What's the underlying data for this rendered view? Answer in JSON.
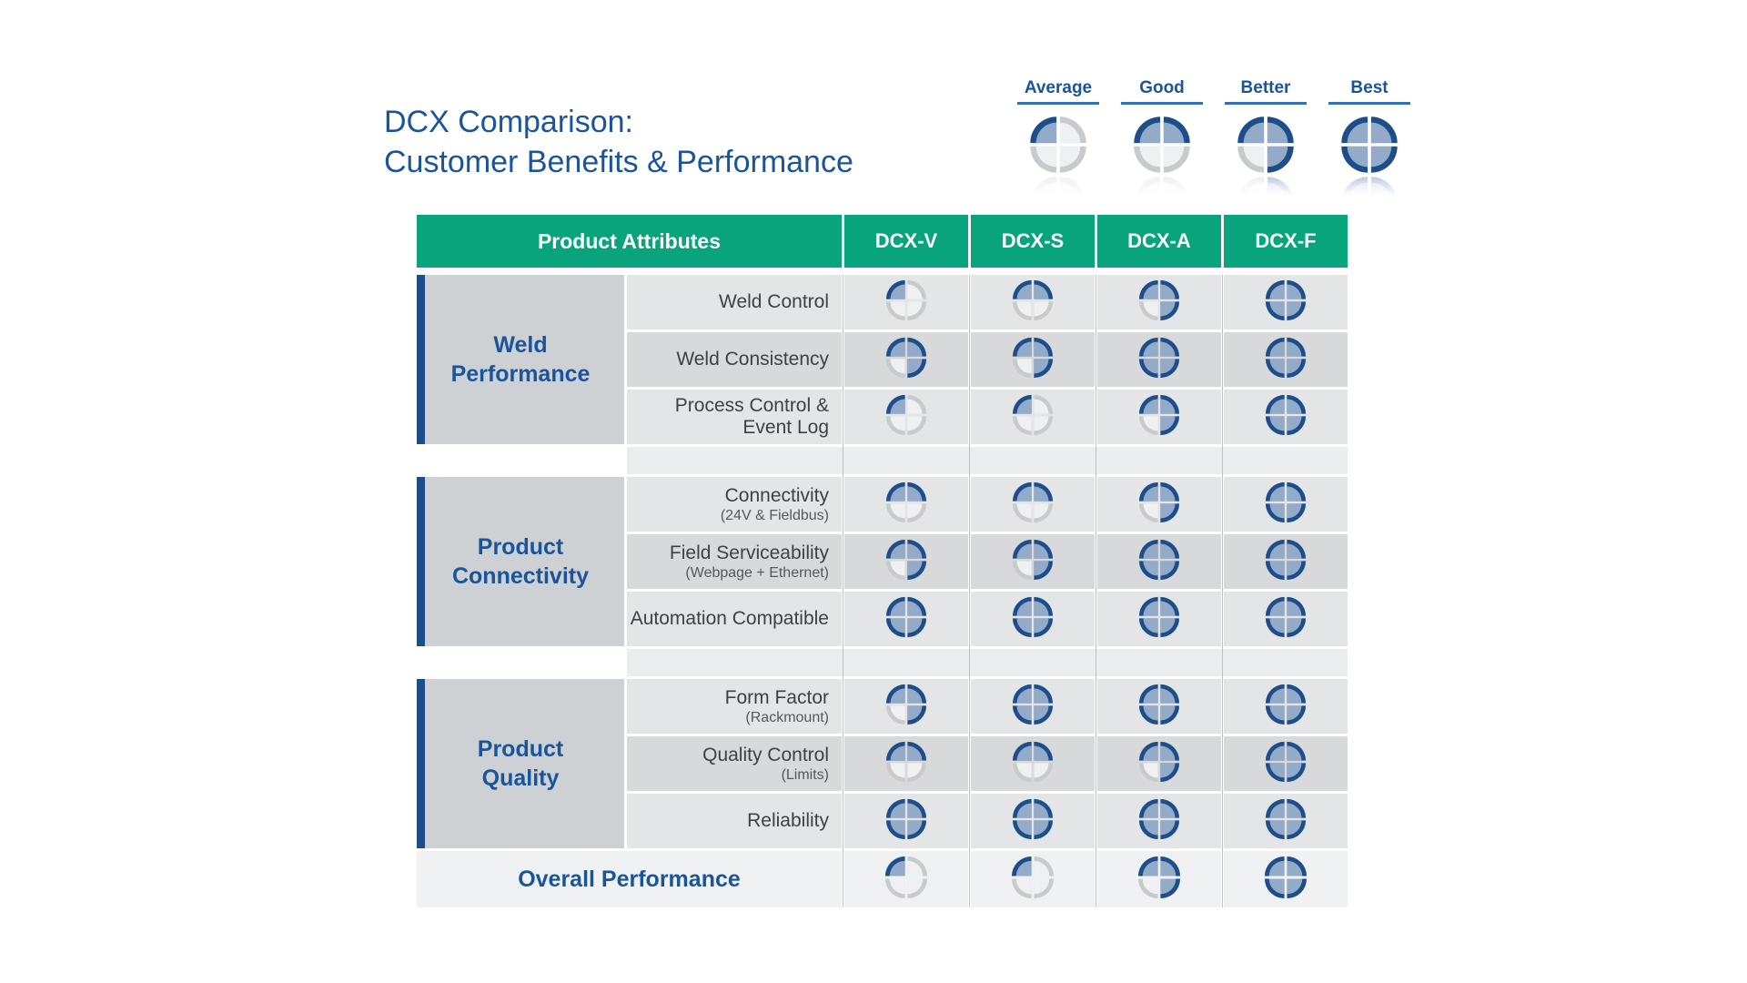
{
  "page_title": {
    "line1": "DCX Comparison:",
    "line2": "Customer Benefits & Performance"
  },
  "legend": {
    "items": [
      {
        "label": "Average",
        "level": 1
      },
      {
        "label": "Good",
        "level": 2
      },
      {
        "label": "Better",
        "level": 3
      },
      {
        "label": "Best",
        "level": 4
      }
    ]
  },
  "table": {
    "header": {
      "attribute_col": "Product Attributes",
      "product_cols": [
        "DCX-V",
        "DCX-S",
        "DCX-A",
        "DCX-F"
      ]
    },
    "groups": [
      {
        "name_lines": [
          "Weld",
          "Performance"
        ],
        "rows": [
          {
            "label": "Weld Control",
            "sub": "",
            "ratings": [
              1,
              2,
              3,
              4
            ]
          },
          {
            "label": "Weld Consistency",
            "sub": "",
            "ratings": [
              3,
              3,
              4,
              4
            ]
          },
          {
            "label": "Process Control & Event Log",
            "sub": "",
            "ratings": [
              1,
              1,
              3,
              4
            ]
          }
        ]
      },
      {
        "name_lines": [
          "Product",
          "Connectivity"
        ],
        "rows": [
          {
            "label": "Connectivity",
            "sub": "(24V & Fieldbus)",
            "ratings": [
              2,
              2,
              3,
              4
            ]
          },
          {
            "label": "Field Serviceability",
            "sub": "(Webpage + Ethernet)",
            "ratings": [
              3,
              3,
              4,
              4
            ]
          },
          {
            "label": "Automation Compatible",
            "sub": "",
            "ratings": [
              4,
              4,
              4,
              4
            ]
          }
        ]
      },
      {
        "name_lines": [
          "Product",
          "Quality"
        ],
        "rows": [
          {
            "label": "Form Factor",
            "sub": "(Rackmount)",
            "ratings": [
              3,
              4,
              4,
              4
            ]
          },
          {
            "label": "Quality Control",
            "sub": "(Limits)",
            "ratings": [
              2,
              2,
              3,
              4
            ]
          },
          {
            "label": "Reliability",
            "sub": "",
            "ratings": [
              4,
              4,
              4,
              4
            ]
          }
        ]
      }
    ],
    "overall": {
      "label": "Overall Performance",
      "ratings": [
        1,
        1,
        3,
        4
      ]
    }
  },
  "chart_data": {
    "type": "table",
    "title": "DCX Comparison: Customer Benefits & Performance",
    "rating_scale": {
      "1": "Average",
      "2": "Good",
      "3": "Better",
      "4": "Best"
    },
    "columns": [
      "DCX-V",
      "DCX-S",
      "DCX-A",
      "DCX-F"
    ],
    "rows": [
      {
        "group": "Weld Performance",
        "attribute": "Weld Control",
        "ratings": [
          1,
          2,
          3,
          4
        ]
      },
      {
        "group": "Weld Performance",
        "attribute": "Weld Consistency",
        "ratings": [
          3,
          3,
          4,
          4
        ]
      },
      {
        "group": "Weld Performance",
        "attribute": "Process Control & Event Log",
        "ratings": [
          1,
          1,
          3,
          4
        ]
      },
      {
        "group": "Product Connectivity",
        "attribute": "Connectivity (24V & Fieldbus)",
        "ratings": [
          2,
          2,
          3,
          4
        ]
      },
      {
        "group": "Product Connectivity",
        "attribute": "Field Serviceability (Webpage + Ethernet)",
        "ratings": [
          3,
          3,
          4,
          4
        ]
      },
      {
        "group": "Product Connectivity",
        "attribute": "Automation Compatible",
        "ratings": [
          4,
          4,
          4,
          4
        ]
      },
      {
        "group": "Product Quality",
        "attribute": "Form Factor (Rackmount)",
        "ratings": [
          3,
          4,
          4,
          4
        ]
      },
      {
        "group": "Product Quality",
        "attribute": "Quality Control (Limits)",
        "ratings": [
          2,
          2,
          3,
          4
        ]
      },
      {
        "group": "Product Quality",
        "attribute": "Reliability",
        "ratings": [
          4,
          4,
          4,
          4
        ]
      },
      {
        "group": "",
        "attribute": "Overall Performance",
        "ratings": [
          1,
          1,
          3,
          4
        ]
      }
    ]
  },
  "colors": {
    "header_green": "#09a47b",
    "brand_blue": "#1a549a",
    "group_bar_navy": "#1d4e8a",
    "ball_filled_ring": "#1d4e8a",
    "ball_filled_fill": "#93aac9",
    "ball_empty_ring": "#c8cbce",
    "ball_empty_fill": "#eef0f2"
  }
}
